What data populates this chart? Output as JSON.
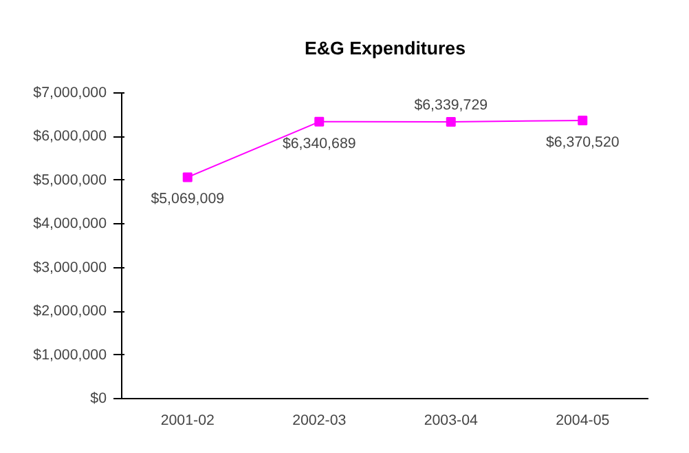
{
  "chart_data": {
    "type": "line",
    "title": "E&G Expenditures",
    "categories": [
      "2001-02",
      "2002-03",
      "2003-04",
      "2004-05"
    ],
    "series": [
      {
        "color": "#ff00ff",
        "values": [
          5069009,
          6340689,
          6339729,
          6370520
        ],
        "value_labels": [
          "$5,069,009",
          "$6,340,689",
          "$6,339,729",
          "$6,370,520"
        ]
      }
    ],
    "ylim": [
      0,
      7000000
    ],
    "yticks": [
      {
        "value": 0,
        "label": "$0"
      },
      {
        "value": 1000000,
        "label": "$1,000,000"
      },
      {
        "value": 2000000,
        "label": "$2,000,000"
      },
      {
        "value": 3000000,
        "label": "$3,000,000"
      },
      {
        "value": 4000000,
        "label": "$4,000,000"
      },
      {
        "value": 5000000,
        "label": "$5,000,000"
      },
      {
        "value": 6000000,
        "label": "$6,000,000"
      },
      {
        "value": 7000000,
        "label": "$7,000,000"
      }
    ],
    "marker": "square",
    "grid": false
  }
}
